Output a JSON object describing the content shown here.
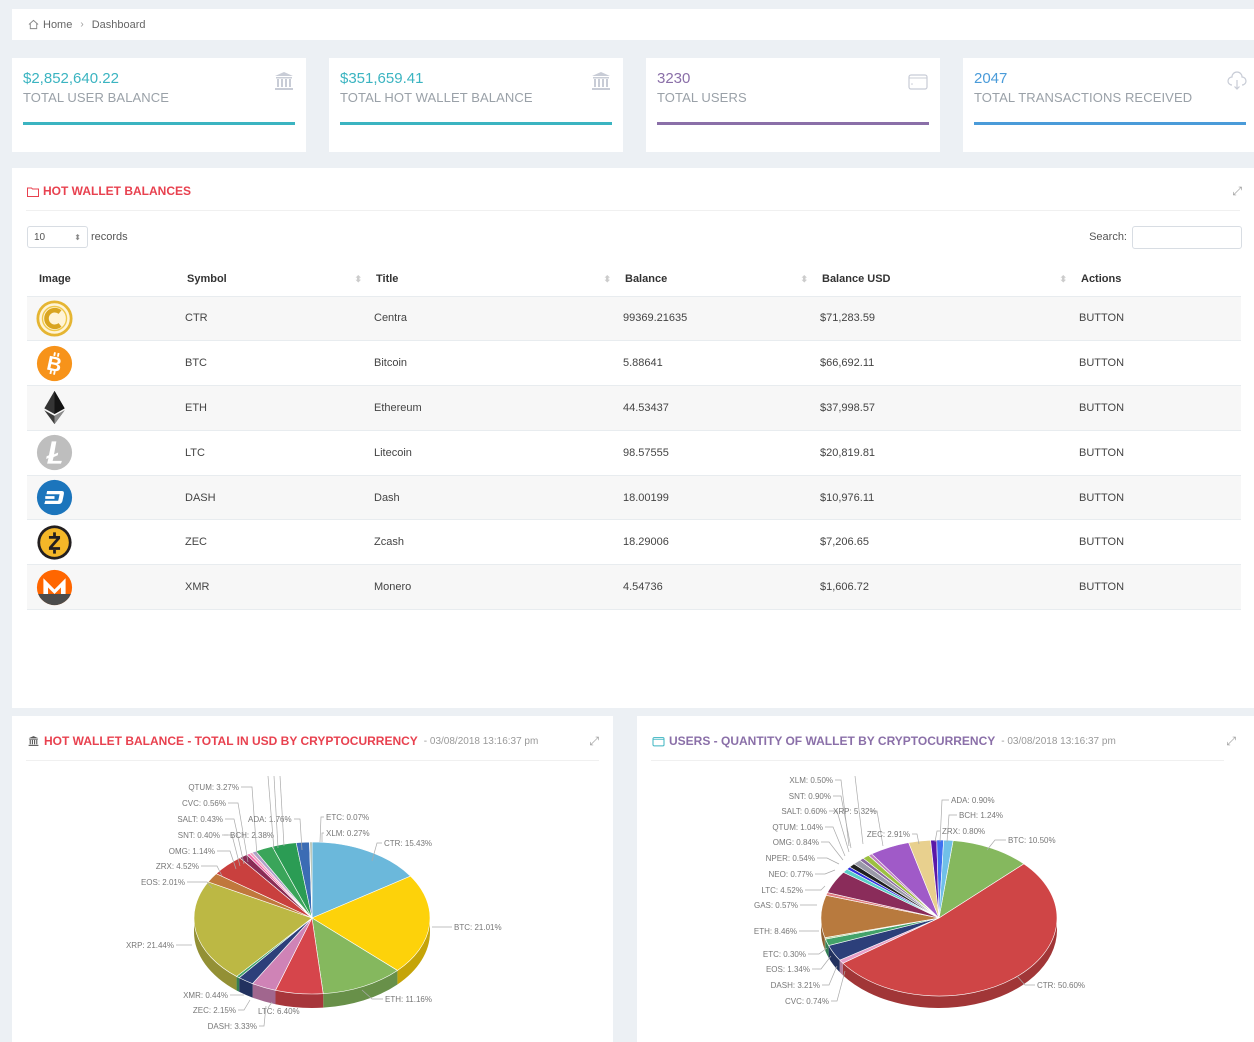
{
  "breadcrumb": {
    "home": "Home",
    "current": "Dashboard"
  },
  "stats": [
    {
      "value": "$2,852,640.22",
      "label": "TOTAL USER BALANCE",
      "color": "#3bb4c1",
      "icon": "bank-icon"
    },
    {
      "value": "$351,659.41",
      "label": "TOTAL HOT WALLET BALANCE",
      "color": "#3bb4c1",
      "icon": "bank-icon"
    },
    {
      "value": "3230",
      "label": "TOTAL USERS",
      "color": "#8a6fa8",
      "icon": "wallet-icon"
    },
    {
      "value": "2047",
      "label": "TOTAL TRANSACTIONS RECEIVED",
      "color": "#4a9bd9",
      "icon": "cloud-download-icon"
    }
  ],
  "hot_wallet": {
    "title": "HOT WALLET BALANCES",
    "length_value": "10",
    "records_label": "records",
    "search_label": "Search:",
    "search_value": "",
    "columns": [
      "Image",
      "Symbol",
      "Title",
      "Balance",
      "Balance USD",
      "Actions"
    ],
    "rows": [
      {
        "symbol": "CTR",
        "title": "Centra",
        "balance": "99369.21635",
        "usd": "$71,283.59",
        "action": "BUTTON",
        "icon": "centra-coin-icon"
      },
      {
        "symbol": "BTC",
        "title": "Bitcoin",
        "balance": "5.88641",
        "usd": "$66,692.11",
        "action": "BUTTON",
        "icon": "bitcoin-coin-icon"
      },
      {
        "symbol": "ETH",
        "title": "Ethereum",
        "balance": "44.53437",
        "usd": "$37,998.57",
        "action": "BUTTON",
        "icon": "ethereum-coin-icon"
      },
      {
        "symbol": "LTC",
        "title": "Litecoin",
        "balance": "98.57555",
        "usd": "$20,819.81",
        "action": "BUTTON",
        "icon": "litecoin-coin-icon"
      },
      {
        "symbol": "DASH",
        "title": "Dash",
        "balance": "18.00199",
        "usd": "$10,976.11",
        "action": "BUTTON",
        "icon": "dash-coin-icon"
      },
      {
        "symbol": "ZEC",
        "title": "Zcash",
        "balance": "18.29006",
        "usd": "$7,206.65",
        "action": "BUTTON",
        "icon": "zcash-coin-icon"
      },
      {
        "symbol": "XMR",
        "title": "Monero",
        "balance": "4.54736",
        "usd": "$1,606.72",
        "action": "BUTTON",
        "icon": "monero-coin-icon"
      }
    ]
  },
  "chart_data": [
    {
      "type": "pie",
      "title": "HOT WALLET BALANCE - TOTAL IN USD BY CRYPTOCURRENCY",
      "timestamp": "- 03/08/2018 13:16:37 pm",
      "title_color": "#e8414f",
      "slices": [
        {
          "label": "CTR",
          "value": 15.43,
          "color": "#6bb8db"
        },
        {
          "label": "BTC",
          "value": 21.01,
          "color": "#fdd20a"
        },
        {
          "label": "ETH",
          "value": 11.16,
          "color": "#85b85e"
        },
        {
          "label": "LTC",
          "value": 6.4,
          "color": "#d6454b"
        },
        {
          "label": "DASH",
          "value": 3.33,
          "color": "#cf83b6"
        },
        {
          "label": "ZEC",
          "value": 2.15,
          "color": "#2c3f7a"
        },
        {
          "label": "XMR",
          "value": 0.44,
          "color": "#43a36a"
        },
        {
          "label": "XRP",
          "value": 21.44,
          "color": "#bcb844"
        },
        {
          "label": "EOS",
          "value": 2.01,
          "color": "#c0783c"
        },
        {
          "label": "ZRX",
          "value": 4.52,
          "color": "#c9403e"
        },
        {
          "label": "OMG",
          "value": 1.14,
          "color": "#8a2c55"
        },
        {
          "label": "SNT",
          "value": 0.4,
          "color": "#ef5ba1"
        },
        {
          "label": "SALT",
          "value": 0.43,
          "color": "#f0a4c0"
        },
        {
          "label": "CVC",
          "value": 0.56,
          "color": "#b0a0c8"
        },
        {
          "label": "BCH",
          "value": 2.38,
          "color": "#3aa55a"
        },
        {
          "label": "QTUM",
          "value": 3.27,
          "color": "#2b9c54"
        },
        {
          "label": "ADA",
          "value": 1.76,
          "color": "#3b6cb4"
        },
        {
          "label": "ETC",
          "value": 0.07,
          "color": "#86c070"
        },
        {
          "label": "XLM",
          "value": 0.27,
          "color": "#a0b0a0"
        }
      ],
      "labels": [
        {
          "text": "CTR: 15.43%"
        },
        {
          "text": "BTC: 21.01%"
        },
        {
          "text": "ETH: 11.16%"
        },
        {
          "text": "LTC: 6.40%"
        },
        {
          "text": "DASH: 3.33%"
        },
        {
          "text": "ZEC: 2.15%"
        },
        {
          "text": "XMR: 0.44%"
        },
        {
          "text": "XRP: 21.44%"
        },
        {
          "text": "EOS: 2.01%"
        },
        {
          "text": "ZRX: 4.52%"
        },
        {
          "text": "OMG: 1.14%"
        },
        {
          "text": "SNT: 0.40%"
        },
        {
          "text": "SALT: 0.43%"
        },
        {
          "text": "CVC: 0.56%"
        },
        {
          "text": "BCH: 2.38%"
        },
        {
          "text": "QTUM: 3.27%"
        },
        {
          "text": "ADA: 1.76%"
        },
        {
          "text": "ETC: 0.07%"
        },
        {
          "text": "XLM: 0.27%"
        }
      ]
    },
    {
      "type": "pie",
      "title": "USERS - QUANTITY OF WALLET BY CRYPTOCURRENCY",
      "timestamp": "- 03/08/2018 13:16:37 pm",
      "title_color": "#8a6fa8",
      "slices": [
        {
          "label": "BTC",
          "value": 10.5,
          "color": "#85b85e"
        },
        {
          "label": "CTR",
          "value": 50.6,
          "color": "#cf4546"
        },
        {
          "label": "CVC",
          "value": 0.74,
          "color": "#e7a0c8"
        },
        {
          "label": "DASH",
          "value": 3.21,
          "color": "#2c3f7a"
        },
        {
          "label": "EOS",
          "value": 1.34,
          "color": "#43a36a"
        },
        {
          "label": "ETC",
          "value": 0.3,
          "color": "#b0d090"
        },
        {
          "label": "ETH",
          "value": 8.46,
          "color": "#b87a3e"
        },
        {
          "label": "GAS",
          "value": 0.57,
          "color": "#e07c80"
        },
        {
          "label": "LTC",
          "value": 4.52,
          "color": "#8a2c5a"
        },
        {
          "label": "NEO",
          "value": 0.77,
          "color": "#5ad0c8"
        },
        {
          "label": "NPER",
          "value": 0.54,
          "color": "#3030e0"
        },
        {
          "label": "OMG",
          "value": 0.84,
          "color": "#202020"
        },
        {
          "label": "QTUM",
          "value": 1.04,
          "color": "#9a9aa8"
        },
        {
          "label": "SALT",
          "value": 0.6,
          "color": "#8a6aa0"
        },
        {
          "label": "SNT",
          "value": 0.9,
          "color": "#9cc040"
        },
        {
          "label": "XLM",
          "value": 0.5,
          "color": "#c080c0"
        },
        {
          "label": "XRP",
          "value": 5.32,
          "color": "#a05ac8"
        },
        {
          "label": "ZEC",
          "value": 2.91,
          "color": "#e8d08e"
        },
        {
          "label": "ZRX",
          "value": 0.8,
          "color": "#5a18a8"
        },
        {
          "label": "ADA",
          "value": 0.9,
          "color": "#4070f0"
        },
        {
          "label": "BCH",
          "value": 1.24,
          "color": "#70c0e8"
        }
      ],
      "labels": [
        {
          "text": "XLM: 0.50%"
        },
        {
          "text": "SNT: 0.90%"
        },
        {
          "text": "SALT: 0.60%"
        },
        {
          "text": "XRP: 5.32%"
        },
        {
          "text": "QTUM: 1.04%"
        },
        {
          "text": "OMG: 0.84%"
        },
        {
          "text": "NPER: 0.54%"
        },
        {
          "text": "NEO: 0.77%"
        },
        {
          "text": "LTC: 4.52%"
        },
        {
          "text": "GAS: 0.57%"
        },
        {
          "text": "ETH: 8.46%"
        },
        {
          "text": "ETC: 0.30%"
        },
        {
          "text": "EOS: 1.34%"
        },
        {
          "text": "DASH: 3.21%"
        },
        {
          "text": "CVC: 0.74%"
        },
        {
          "text": "ADA: 0.90%"
        },
        {
          "text": "BCH: 1.24%"
        },
        {
          "text": "ZRX: 0.80%"
        },
        {
          "text": "ZEC: 2.91%"
        },
        {
          "text": "BTC: 10.50%"
        },
        {
          "text": "CTR: 50.60%"
        }
      ]
    }
  ]
}
